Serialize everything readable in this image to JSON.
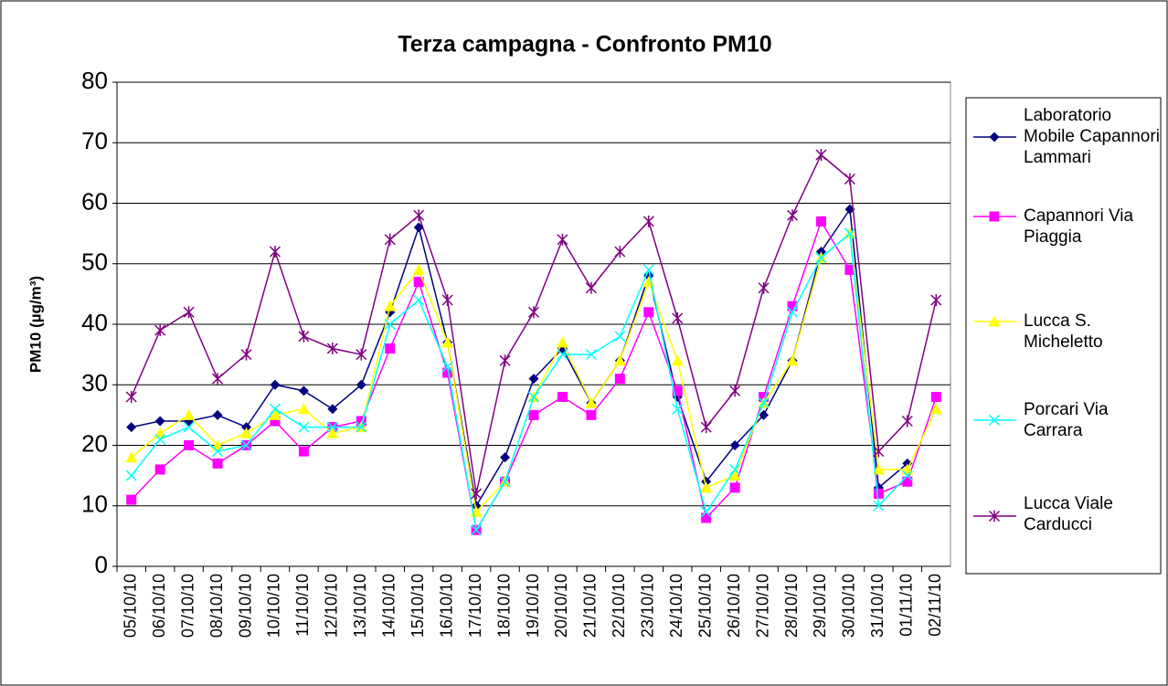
{
  "chart_data": {
    "type": "line",
    "title": "Terza campagna - Confronto PM10",
    "y_label": "PM10 (µg/m³)",
    "categories": [
      "05/10/10",
      "06/10/10",
      "07/10/10",
      "08/10/10",
      "09/10/10",
      "10/10/10",
      "11/10/10",
      "12/10/10",
      "13/10/10",
      "14/10/10",
      "15/10/10",
      "16/10/10",
      "17/10/10",
      "18/10/10",
      "19/10/10",
      "20/10/10",
      "21/10/10",
      "22/10/10",
      "23/10/10",
      "24/10/10",
      "25/10/10",
      "26/10/10",
      "27/10/10",
      "28/10/10",
      "29/10/10",
      "30/10/10",
      "31/10/10",
      "01/11/10",
      "02/11/10"
    ],
    "series": [
      {
        "name": "Laboratorio Mobile Capannori Lammari",
        "color": "#000080",
        "marker": "diamond",
        "values": [
          23,
          24,
          24,
          25,
          23,
          30,
          29,
          26,
          30,
          42,
          56,
          37,
          10,
          18,
          31,
          36,
          27,
          34,
          48,
          28,
          14,
          20,
          25,
          34,
          52,
          59,
          13,
          17,
          null
        ]
      },
      {
        "name": "Capannori Via Piaggia",
        "color": "#ff00ff",
        "marker": "square",
        "values": [
          11,
          16,
          20,
          17,
          20,
          24,
          19,
          23,
          24,
          36,
          47,
          32,
          6,
          14,
          25,
          28,
          25,
          31,
          42,
          29,
          8,
          13,
          28,
          43,
          57,
          49,
          12,
          14,
          28
        ]
      },
      {
        "name": "Lucca S. Micheletto",
        "color": "#ffff00",
        "marker": "triangle",
        "values": [
          18,
          22,
          25,
          20,
          22,
          25,
          26,
          22,
          23,
          43,
          49,
          37,
          9,
          14,
          28,
          37,
          27,
          34,
          47,
          34,
          13,
          15,
          27,
          34,
          51,
          55,
          16,
          16,
          26
        ]
      },
      {
        "name": "Porcari Via Carrara",
        "color": "#00ffff",
        "marker": "x",
        "values": [
          15,
          21,
          23,
          19,
          20,
          26,
          23,
          23,
          23,
          40,
          44,
          33,
          6,
          14,
          28,
          35,
          35,
          38,
          49,
          26,
          9,
          16,
          27,
          42,
          51,
          55,
          10,
          15,
          null
        ]
      },
      {
        "name": "Lucca Viale Carducci",
        "color": "#800080",
        "marker": "star",
        "values": [
          28,
          39,
          42,
          31,
          35,
          52,
          38,
          36,
          35,
          54,
          58,
          44,
          12,
          34,
          42,
          54,
          46,
          52,
          57,
          41,
          23,
          29,
          46,
          58,
          68,
          64,
          19,
          24,
          44
        ]
      }
    ],
    "ylim": [
      0,
      80
    ],
    "yticks": [
      0,
      10,
      20,
      30,
      40,
      50,
      60,
      70,
      80
    ],
    "grid": true
  }
}
